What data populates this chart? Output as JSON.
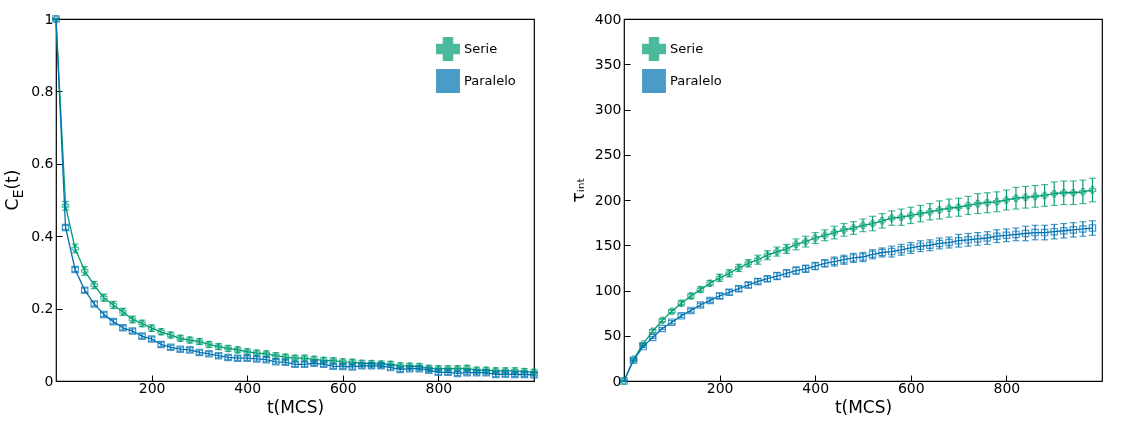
{
  "chart_data": [
    {
      "type": "line",
      "xlabel": "t(MCS)",
      "ylabel": "C$_{E}$(t)",
      "xlim": [
        0,
        1000
      ],
      "xticks": [
        200,
        400,
        600,
        800
      ],
      "ylim": [
        0,
        1
      ],
      "yticks": [
        {
          "value": 0,
          "label": "0"
        },
        0.2,
        0.4,
        0.6,
        0.8,
        {
          "value": 1,
          "label": "1"
        }
      ],
      "legend": "top right",
      "x": [
        0,
        20,
        40,
        60,
        80,
        100,
        120,
        140,
        160,
        180,
        200,
        220,
        240,
        260,
        280,
        300,
        320,
        340,
        360,
        380,
        400,
        420,
        440,
        460,
        480,
        500,
        520,
        540,
        560,
        580,
        600,
        620,
        640,
        660,
        680,
        700,
        720,
        740,
        760,
        780,
        800,
        820,
        840,
        860,
        880,
        900,
        920,
        940,
        960,
        980,
        1000
      ],
      "series": [
        {
          "name": "Serie",
          "color": "#009e73",
          "marker": "cross",
          "values": [
            1,
            0.484,
            0.366,
            0.304,
            0.265,
            0.23,
            0.21,
            0.191,
            0.17,
            0.159,
            0.146,
            0.136,
            0.127,
            0.118,
            0.113,
            0.109,
            0.101,
            0.095,
            0.09,
            0.086,
            0.081,
            0.077,
            0.075,
            0.07,
            0.066,
            0.063,
            0.063,
            0.06,
            0.057,
            0.056,
            0.053,
            0.052,
            0.049,
            0.048,
            0.047,
            0.046,
            0.042,
            0.041,
            0.04,
            0.035,
            0.034,
            0.034,
            0.034,
            0.035,
            0.03,
            0.03,
            0.028,
            0.028,
            0.028,
            0.026,
            0.024
          ],
          "errors": [
            0,
            0.012,
            0.012,
            0.012,
            0.01,
            0.01,
            0.01,
            0.01,
            0.009,
            0.009,
            0.009,
            0.008,
            0.008,
            0.008,
            0.008,
            0.008,
            0.008,
            0.008,
            0.008,
            0.008,
            0.008,
            0.008,
            0.008,
            0.008,
            0.008,
            0.008,
            0.008,
            0.008,
            0.008,
            0.008,
            0.008,
            0.008,
            0.008,
            0.008,
            0.008,
            0.008,
            0.008,
            0.008,
            0.008,
            0.008,
            0.008,
            0.008,
            0.008,
            0.008,
            0.008,
            0.008,
            0.008,
            0.008,
            0.008,
            0.008,
            0.008
          ]
        },
        {
          "name": "Paralelo",
          "color": "#0072b2",
          "marker": "square",
          "values": [
            1,
            0.424,
            0.308,
            0.251,
            0.213,
            0.184,
            0.164,
            0.147,
            0.138,
            0.124,
            0.116,
            0.101,
            0.093,
            0.088,
            0.086,
            0.079,
            0.075,
            0.07,
            0.065,
            0.063,
            0.063,
            0.061,
            0.059,
            0.053,
            0.052,
            0.046,
            0.046,
            0.049,
            0.046,
            0.041,
            0.04,
            0.039,
            0.042,
            0.042,
            0.042,
            0.037,
            0.032,
            0.034,
            0.034,
            0.03,
            0.024,
            0.024,
            0.021,
            0.023,
            0.023,
            0.023,
            0.018,
            0.019,
            0.018,
            0.018,
            0.017
          ],
          "errors": [
            0,
            0.006,
            0.006,
            0.006,
            0.006,
            0.006,
            0.006,
            0.006,
            0.006,
            0.006,
            0.006,
            0.006,
            0.006,
            0.006,
            0.006,
            0.006,
            0.006,
            0.006,
            0.006,
            0.006,
            0.006,
            0.006,
            0.006,
            0.006,
            0.006,
            0.006,
            0.006,
            0.006,
            0.006,
            0.006,
            0.006,
            0.006,
            0.006,
            0.006,
            0.006,
            0.006,
            0.006,
            0.006,
            0.006,
            0.006,
            0.006,
            0.006,
            0.006,
            0.006,
            0.006,
            0.006,
            0.006,
            0.006,
            0.006,
            0.006,
            0.006
          ]
        }
      ]
    },
    {
      "type": "line",
      "xlabel": "t(MCS)",
      "ylabel": "τᵢₙₜ",
      "xlim": [
        0,
        1000
      ],
      "xticks": [
        200,
        400,
        600,
        800
      ],
      "ylim": [
        0,
        400
      ],
      "yticks": [
        0,
        50,
        100,
        150,
        200,
        250,
        300,
        350,
        400
      ],
      "legend": "top left",
      "x": [
        0,
        20,
        40,
        60,
        80,
        100,
        120,
        140,
        160,
        180,
        200,
        220,
        240,
        260,
        280,
        300,
        320,
        340,
        360,
        380,
        400,
        420,
        440,
        460,
        480,
        500,
        520,
        540,
        560,
        580,
        600,
        620,
        640,
        660,
        680,
        700,
        720,
        740,
        760,
        780,
        800,
        820,
        840,
        860,
        880,
        900,
        920,
        940,
        960,
        980
      ],
      "series": [
        {
          "name": "Serie",
          "color": "#009e73",
          "marker": "cross",
          "values": [
            0,
            24,
            41,
            55,
            67,
            77,
            86,
            94,
            101,
            108,
            114,
            119,
            125,
            130,
            134,
            139,
            143,
            146,
            151,
            154,
            158,
            161,
            164,
            167,
            169,
            172,
            174,
            177,
            180,
            181,
            183,
            185,
            187,
            189,
            191,
            192,
            194,
            196,
            197,
            198,
            200,
            202,
            203,
            204,
            205,
            207,
            208,
            208,
            209,
            211
          ],
          "errors": [
            0,
            1,
            1,
            2,
            2,
            2,
            3,
            3,
            3,
            3,
            4,
            4,
            4,
            4,
            5,
            5,
            5,
            5,
            6,
            6,
            6,
            6,
            7,
            7,
            7,
            7,
            8,
            8,
            8,
            9,
            9,
            9,
            9,
            10,
            10,
            10,
            10,
            11,
            11,
            11,
            11,
            12,
            12,
            12,
            12,
            13,
            13,
            13,
            13,
            13
          ]
        },
        {
          "name": "Paralelo",
          "color": "#0072b2",
          "marker": "square",
          "values": [
            0,
            23,
            38,
            48,
            58,
            65,
            72,
            78,
            84,
            89,
            94,
            98,
            102,
            106,
            110,
            113,
            116,
            119,
            122,
            124,
            127,
            130,
            132,
            134,
            136,
            137,
            140,
            142,
            143,
            145,
            147,
            149,
            150,
            152,
            153,
            155,
            156,
            157,
            158,
            160,
            161,
            162,
            163,
            164,
            164,
            165,
            166,
            167,
            168,
            169
          ],
          "errors": [
            0,
            1,
            1,
            1,
            1,
            2,
            2,
            2,
            2,
            2,
            3,
            3,
            3,
            3,
            3,
            3,
            4,
            4,
            4,
            4,
            4,
            4,
            5,
            5,
            5,
            5,
            5,
            5,
            6,
            6,
            6,
            6,
            6,
            6,
            6,
            7,
            7,
            7,
            7,
            7,
            7,
            7,
            8,
            8,
            8,
            8,
            8,
            8,
            8,
            8
          ]
        }
      ]
    }
  ]
}
